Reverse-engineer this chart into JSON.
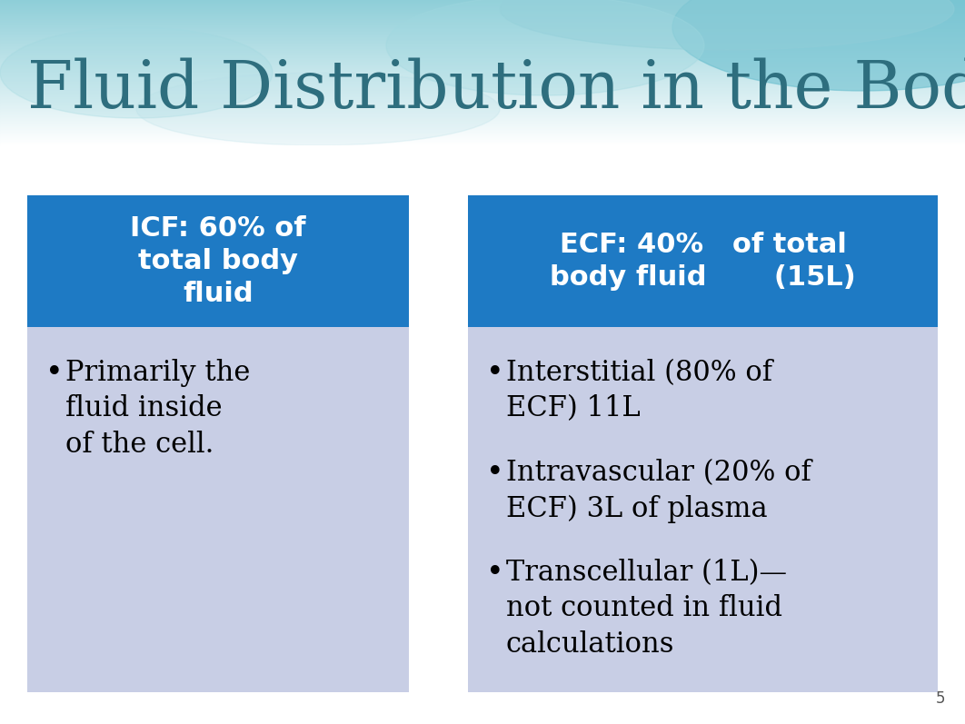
{
  "title": "Fluid Distribution in the Body",
  "title_color": "#2E6E7E",
  "title_fontsize": 52,
  "background_color": "#FFFFFF",
  "header_bg_color": "#1E7AC4",
  "box_bg_color": "#C8CEE5",
  "left_header": "ICF: 60% of\ntotal body\nfluid",
  "right_header": "ECF: 40%   of total\nbody fluid       (15L)",
  "left_bullets": [
    "Primarily the\nfluid inside\nof the cell."
  ],
  "right_bullets": [
    "Interstitial (80% of\nECF) 11L",
    "Intravascular (20% of\nECF) 3L of plasma",
    "Transcellular (1L)—\nnot counted in fluid\ncalculations"
  ],
  "page_number": "5",
  "fig_width": 10.62,
  "fig_height": 7.97,
  "dpi": 100
}
